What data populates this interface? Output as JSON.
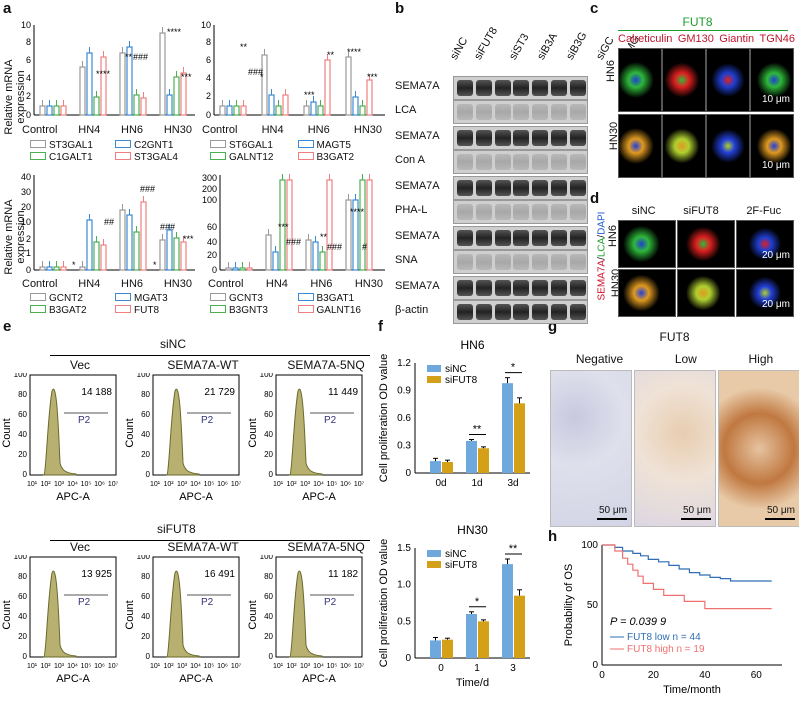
{
  "panels": {
    "a": "a",
    "b": "b",
    "c": "c",
    "d": "d",
    "e": "e",
    "f": "f",
    "g": "g",
    "h": "h"
  },
  "panel_a": {
    "ylabel": "Relative mRNA expression",
    "groups": [
      "Control",
      "HN4",
      "HN6",
      "HN30"
    ],
    "chart1_legend": [
      "ST3GAL1",
      "C2GNT1",
      "C1GALT1",
      "ST3GAL4"
    ],
    "chart2_legend": [
      "ST6GAL1",
      "MAGT5",
      "GALNT12",
      "B3GAT2"
    ],
    "chart3_legend": [
      "GCNT2",
      "MGAT3",
      "B3GAT2",
      "FUT8"
    ],
    "chart4_legend": [
      "GCNT3",
      "B3GAT1",
      "B3GNT3",
      "GALNT16"
    ]
  },
  "panel_b": {
    "lanes": [
      "siNC",
      "siFUT8",
      "siST3",
      "siB3A",
      "siB3G",
      "siGC",
      "siMG"
    ],
    "rows": [
      "SEMA7A",
      "LCA",
      "SEMA7A",
      "Con A",
      "SEMA7A",
      "PHA-L",
      "SEMA7A",
      "SNA",
      "SEMA7A",
      "β-actin"
    ]
  },
  "panel_c": {
    "title": "FUT8",
    "cols": [
      "Calreticulin",
      "GM130",
      "Giantin",
      "TGN46"
    ],
    "rows": [
      "HN6",
      "HN30"
    ],
    "scale": "10 μm"
  },
  "panel_d": {
    "cols": [
      "siNC",
      "siFUT8",
      "2F-Fuc"
    ],
    "rows": [
      "HN6",
      "HN30"
    ],
    "scale": "20 μm",
    "ylabel_parts": [
      "SEMA7A",
      "/",
      "LCA",
      "/",
      "DAPI"
    ]
  },
  "panel_e": {
    "top_group": "siNC",
    "bottom_group": "siFUT8",
    "cols": [
      "Vec",
      "SEMA7A-WT",
      "SEMA7A-5NQ"
    ],
    "top_values": [
      "14 188",
      "21 729",
      "11 449"
    ],
    "bottom_values": [
      "13 925",
      "16 491",
      "11 182"
    ],
    "gate": "P2",
    "xlabel": "APC-A",
    "ylabel": "Count",
    "yticks": [
      "0",
      "20",
      "40",
      "60",
      "80",
      "100"
    ],
    "xticks": [
      "10¹",
      "10²",
      "10³",
      "10⁴",
      "10⁵",
      "10⁶",
      "10⁷"
    ]
  },
  "panel_g": {
    "title": "FUT8",
    "cols": [
      "Negative",
      "Low",
      "High"
    ],
    "scale": "50 μm"
  },
  "chart_data": [
    {
      "type": "bar",
      "title": "HN6",
      "xlabel": "",
      "ylabel": "Cell proliferation OD value",
      "categories": [
        "0d",
        "1d",
        "3d"
      ],
      "series": [
        {
          "name": "siNC",
          "values": [
            0.13,
            0.35,
            0.98
          ],
          "errors": [
            0.03,
            0.015,
            0.06
          ]
        },
        {
          "name": "siFUT8",
          "values": [
            0.12,
            0.27,
            0.76
          ],
          "errors": [
            0.02,
            0.015,
            0.06
          ]
        }
      ],
      "ylim": [
        0,
        1.2
      ],
      "yticks": [
        "0",
        "0.3",
        "0.6",
        "0.9",
        "1.2"
      ],
      "significance": [
        "",
        "**",
        "*"
      ]
    },
    {
      "type": "bar",
      "title": "HN30",
      "xlabel": "Time/d",
      "ylabel": "Cell proliferation OD value",
      "categories": [
        "0",
        "1",
        "3"
      ],
      "series": [
        {
          "name": "siNC",
          "values": [
            0.24,
            0.6,
            1.28
          ],
          "errors": [
            0.04,
            0.03,
            0.07
          ]
        },
        {
          "name": "siFUT8",
          "values": [
            0.25,
            0.5,
            0.85
          ],
          "errors": [
            0.02,
            0.02,
            0.08
          ]
        }
      ],
      "ylim": [
        0,
        1.5
      ],
      "yticks": [
        "0",
        "0.5",
        "1.0",
        "1.5"
      ],
      "significance": [
        "",
        "*",
        "**"
      ]
    },
    {
      "type": "line",
      "title": "",
      "xlabel": "Time/month",
      "ylabel": "Probability of OS",
      "series": [
        {
          "name": "FUT8 low n = 44",
          "x": [
            0,
            5,
            8,
            12,
            15,
            18,
            22,
            26,
            30,
            34,
            38,
            42,
            46,
            50,
            55,
            60,
            66
          ],
          "y": [
            100,
            98,
            95,
            93,
            91,
            88,
            86,
            83,
            80,
            77,
            75,
            73,
            72,
            70,
            70,
            70,
            70
          ]
        },
        {
          "name": "FUT8 high n = 19",
          "x": [
            0,
            5,
            8,
            10,
            12,
            14,
            16,
            20,
            24,
            28,
            32,
            36,
            40,
            44,
            50,
            56,
            66
          ],
          "y": [
            100,
            95,
            89,
            84,
            79,
            74,
            68,
            63,
            58,
            58,
            53,
            53,
            47,
            47,
            47,
            47,
            47
          ]
        }
      ],
      "xlim": [
        0,
        70
      ],
      "ylim": [
        0,
        100
      ],
      "xticks": [
        "0",
        "20",
        "40",
        "60"
      ],
      "yticks": [
        "0",
        "50",
        "100"
      ],
      "annotation": "P = 0.039 9"
    }
  ]
}
